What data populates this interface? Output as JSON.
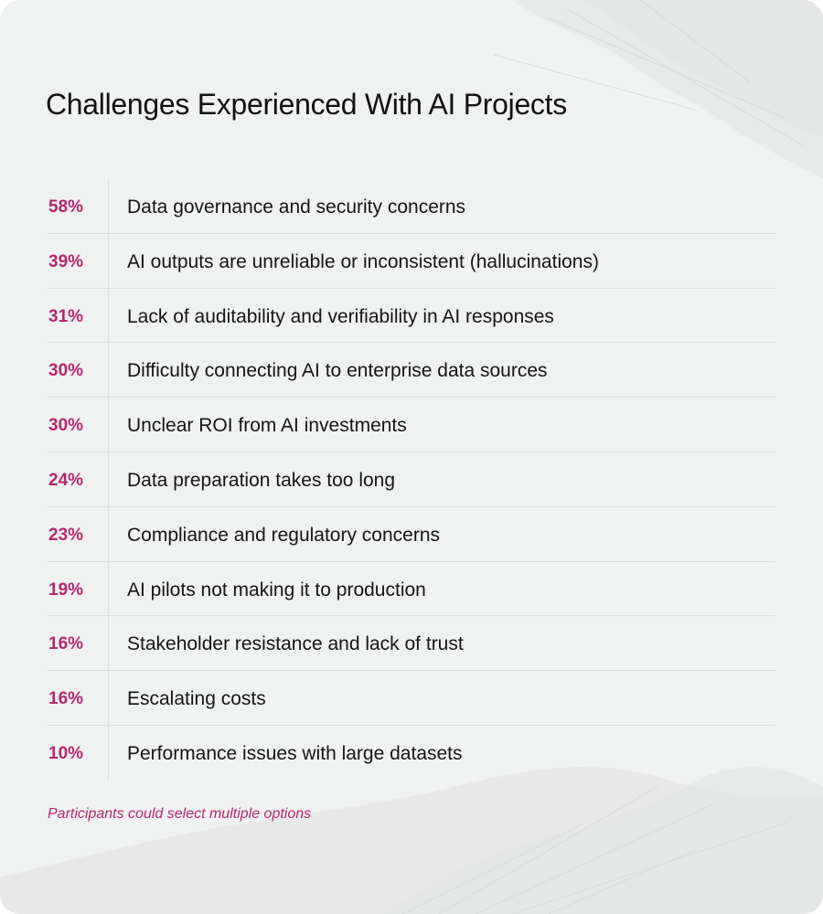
{
  "chart_data": {
    "type": "table",
    "title": "Challenges Experienced With AI Projects",
    "rows": [
      {
        "value": "58%",
        "label": "Data governance and security concerns"
      },
      {
        "value": "39%",
        "label": "AI outputs are unreliable or inconsistent (hallucinations)"
      },
      {
        "value": "31%",
        "label": "Lack of auditability and verifiability in AI responses"
      },
      {
        "value": "30%",
        "label": "Difficulty connecting AI to enterprise data sources"
      },
      {
        "value": "30%",
        "label": "Unclear ROI from AI investments"
      },
      {
        "value": "24%",
        "label": "Data preparation takes too long"
      },
      {
        "value": "23%",
        "label": "Compliance and regulatory concerns"
      },
      {
        "value": "19%",
        "label": "AI pilots not making it to production"
      },
      {
        "value": "16%",
        "label": "Stakeholder resistance and lack of trust"
      },
      {
        "value": "16%",
        "label": "Escalating costs"
      },
      {
        "value": "10%",
        "label": "Performance issues with large datasets"
      }
    ],
    "footnote": "Participants could select multiple options"
  },
  "colors": {
    "background": "#f0f1f1",
    "accent": "#b3286e",
    "text": "#151515",
    "divider": "#dcdcdc"
  }
}
